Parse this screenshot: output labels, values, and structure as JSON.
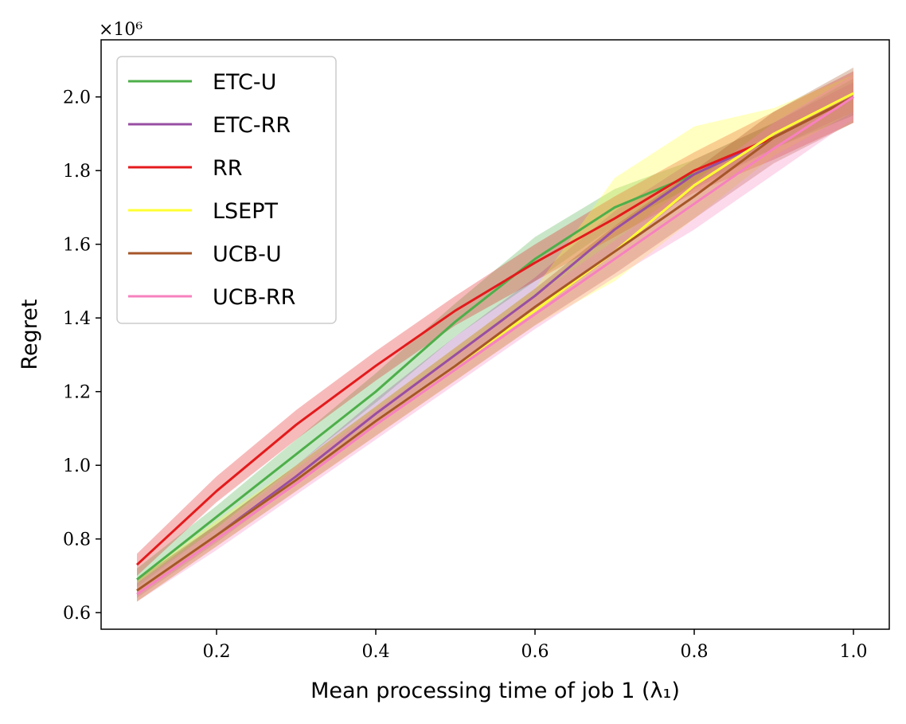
{
  "chart_data": {
    "type": "line",
    "xlabel": "Mean processing time of job 1 (λ₁)",
    "ylabel": "Regret",
    "y_multiplier_label": "×10⁶",
    "xlim": [
      0.055,
      1.045
    ],
    "ylim": [
      0.555,
      2.155
    ],
    "xticks": [
      0.2,
      0.4,
      0.6,
      0.8,
      1.0
    ],
    "xtick_labels": [
      "0.2",
      "0.4",
      "0.6",
      "0.8",
      "1.0"
    ],
    "yticks": [
      0.6,
      0.8,
      1.0,
      1.2,
      1.4,
      1.6,
      1.8,
      2.0
    ],
    "ytick_labels": [
      "0.6",
      "0.8",
      "1.0",
      "1.2",
      "1.4",
      "1.6",
      "1.8",
      "2.0"
    ],
    "grid": false,
    "legend_position": "upper-left",
    "x": [
      0.1,
      0.2,
      0.3,
      0.4,
      0.5,
      0.6,
      0.7,
      0.8,
      0.9,
      1.0
    ],
    "series": [
      {
        "name": "ETC-U",
        "color": "#4daf4a",
        "values": [
          0.69,
          0.86,
          1.03,
          1.2,
          1.39,
          1.56,
          1.7,
          1.79,
          1.89,
          2.0
        ],
        "lower": [
          0.67,
          0.83,
          1.0,
          1.17,
          1.35,
          1.5,
          1.65,
          1.76,
          1.86,
          1.95
        ],
        "upper": [
          0.72,
          0.89,
          1.07,
          1.25,
          1.44,
          1.62,
          1.75,
          1.83,
          1.93,
          2.05
        ]
      },
      {
        "name": "ETC-RR",
        "color": "#984ea3",
        "values": [
          0.66,
          0.81,
          0.97,
          1.14,
          1.3,
          1.46,
          1.64,
          1.79,
          1.89,
          2.0
        ],
        "lower": [
          0.64,
          0.79,
          0.95,
          1.11,
          1.27,
          1.42,
          1.58,
          1.75,
          1.86,
          1.96
        ],
        "upper": [
          0.68,
          0.84,
          1.0,
          1.18,
          1.35,
          1.51,
          1.69,
          1.83,
          1.93,
          2.04
        ]
      },
      {
        "name": "RR",
        "color": "#e41a1c",
        "values": [
          0.73,
          0.93,
          1.11,
          1.27,
          1.42,
          1.55,
          1.67,
          1.8,
          1.89,
          2.0
        ],
        "lower": [
          0.7,
          0.9,
          1.07,
          1.23,
          1.38,
          1.5,
          1.62,
          1.74,
          1.83,
          1.93
        ],
        "upper": [
          0.76,
          0.97,
          1.15,
          1.31,
          1.46,
          1.6,
          1.73,
          1.85,
          1.96,
          2.07
        ]
      },
      {
        "name": "LSEPT",
        "color": "#ffff33",
        "values": [
          0.66,
          0.81,
          0.96,
          1.12,
          1.27,
          1.42,
          1.58,
          1.76,
          1.9,
          2.01
        ],
        "lower": [
          0.63,
          0.78,
          0.93,
          1.08,
          1.23,
          1.38,
          1.5,
          1.67,
          1.84,
          1.96
        ],
        "upper": [
          0.69,
          0.85,
          1.0,
          1.16,
          1.32,
          1.48,
          1.78,
          1.92,
          1.97,
          2.06
        ]
      },
      {
        "name": "UCB-U",
        "color": "#a65628",
        "values": [
          0.66,
          0.81,
          0.96,
          1.12,
          1.27,
          1.43,
          1.58,
          1.73,
          1.89,
          2.0
        ],
        "lower": [
          0.63,
          0.78,
          0.93,
          1.08,
          1.23,
          1.38,
          1.52,
          1.67,
          1.82,
          1.93
        ],
        "upper": [
          0.69,
          0.84,
          1.0,
          1.16,
          1.32,
          1.48,
          1.65,
          1.8,
          1.96,
          2.08
        ]
      },
      {
        "name": "UCB-RR",
        "color": "#f781bf",
        "values": [
          0.65,
          0.8,
          0.95,
          1.11,
          1.26,
          1.41,
          1.56,
          1.71,
          1.86,
          2.0
        ],
        "lower": [
          0.63,
          0.77,
          0.92,
          1.07,
          1.22,
          1.37,
          1.51,
          1.64,
          1.79,
          1.94
        ],
        "upper": [
          0.68,
          0.83,
          0.99,
          1.15,
          1.3,
          1.46,
          1.61,
          1.77,
          1.93,
          2.06
        ]
      }
    ]
  }
}
